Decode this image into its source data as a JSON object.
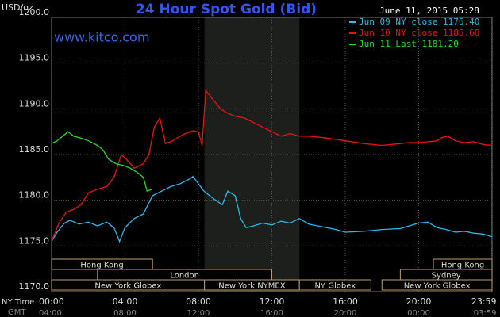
{
  "chart_data": {
    "type": "line",
    "title": "24 Hour Spot Gold (Bid)",
    "date": "June 11, 2015 05:28",
    "watermark": "www.kitco.com",
    "y_label": "USD/oz",
    "x_label": "NY Time",
    "x2_label": "GMT",
    "xlim": [
      0,
      24
    ],
    "ylim": [
      1170,
      1200
    ],
    "xticks": [
      {
        "value": 0,
        "label": "00:00"
      },
      {
        "value": 4,
        "label": "04:00"
      },
      {
        "value": 8,
        "label": "08:00"
      },
      {
        "value": 12,
        "label": "12:00"
      },
      {
        "value": 16,
        "label": "16:00"
      },
      {
        "value": 20,
        "label": "20:00"
      },
      {
        "value": 23.98,
        "label": "23:59"
      }
    ],
    "x2ticks": [
      {
        "value": 0,
        "label": "04:00"
      },
      {
        "value": 4,
        "label": "08:00"
      },
      {
        "value": 8,
        "label": "12:00"
      },
      {
        "value": 12,
        "label": "16:00"
      },
      {
        "value": 16,
        "label": "20:00"
      },
      {
        "value": 20,
        "label": "00:00"
      },
      {
        "value": 23.98,
        "label": "03:59"
      }
    ],
    "yticks": [
      {
        "value": 1170,
        "label": "1170.0"
      },
      {
        "value": 1175,
        "label": "1175.0"
      },
      {
        "value": 1180,
        "label": "1180.0"
      },
      {
        "value": 1185,
        "label": "1185.0"
      },
      {
        "value": 1190,
        "label": "1190.0"
      },
      {
        "value": 1195,
        "label": "1195.0"
      },
      {
        "value": 1200,
        "label": "1200.0"
      }
    ],
    "grid": true,
    "shaded": [
      8.33,
      13.5
    ],
    "session_rows": [
      [
        {
          "label": "Hong Kong",
          "start": 0,
          "end": 5.5
        },
        {
          "label": "Hong Kong",
          "start": 20.8,
          "end": 24
        }
      ],
      [
        {
          "label": "London",
          "start": 2.5,
          "end": 12
        },
        {
          "label": "Sydney",
          "start": 19,
          "end": 24
        }
      ],
      [
        {
          "label": "New York Globex",
          "start": 0,
          "end": 8.33
        },
        {
          "label": "New York NYMEX",
          "start": 8.33,
          "end": 13.5
        },
        {
          "label": "NY Globex",
          "start": 13.5,
          "end": 17.4
        },
        {
          "label": "New York Globex",
          "start": 18,
          "end": 24
        }
      ]
    ],
    "series": [
      {
        "name": "Jun 09 NY close 1176.40",
        "color": "#22bbee",
        "x": [
          0,
          0.3,
          0.7,
          1,
          1.5,
          2,
          2.5,
          3,
          3.4,
          3.7,
          4,
          4.5,
          5,
          5.5,
          6,
          6.5,
          7,
          7.5,
          7.7,
          8,
          8.3,
          8.8,
          9.3,
          9.6,
          10,
          10.3,
          10.6,
          11,
          11.5,
          12,
          12.5,
          13,
          13.5,
          14,
          14.5,
          15,
          15.5,
          16,
          17,
          18,
          19,
          20,
          20.5,
          21,
          21.5,
          22,
          22.5,
          23,
          23.5,
          24
        ],
        "values": [
          1175.5,
          1176.5,
          1177.5,
          1177.8,
          1177.4,
          1177.6,
          1177.2,
          1177.6,
          1177,
          1175.5,
          1177,
          1178,
          1178.5,
          1180.5,
          1181,
          1181.5,
          1181.8,
          1182.3,
          1182.6,
          1181.8,
          1181,
          1180.2,
          1179.5,
          1181,
          1180.5,
          1178,
          1177,
          1177.2,
          1177.5,
          1177.3,
          1177.7,
          1177.5,
          1178,
          1177.4,
          1177.2,
          1177,
          1176.8,
          1176.5,
          1176.6,
          1176.8,
          1176.9,
          1177.5,
          1177.6,
          1177,
          1176.8,
          1176.5,
          1176.6,
          1176.4,
          1176.3,
          1176
        ]
      },
      {
        "name": "Jun 10 NY close 1185.60",
        "color": "#ee1111",
        "x": [
          0,
          0.4,
          0.8,
          1.2,
          1.6,
          2,
          2.5,
          3,
          3.4,
          3.8,
          4.2,
          4.5,
          5,
          5.3,
          5.6,
          5.9,
          6.2,
          6.6,
          7,
          7.3,
          7.7,
          8,
          8.2,
          8.4,
          8.8,
          9.2,
          9.6,
          10,
          10.5,
          11,
          11.5,
          12,
          12.5,
          13,
          13.5,
          14,
          15,
          16,
          17,
          18,
          19,
          19.5,
          20,
          20.5,
          21,
          21.3,
          21.6,
          22,
          22.5,
          23,
          23.5,
          24
        ],
        "values": [
          1175.5,
          1177.5,
          1178.7,
          1179,
          1179.5,
          1180.8,
          1181.2,
          1181.5,
          1182.5,
          1185,
          1184.2,
          1183.5,
          1184,
          1185,
          1188,
          1189,
          1186.2,
          1186.5,
          1187,
          1187.3,
          1187.6,
          1187.5,
          1186,
          1192,
          1191,
          1190,
          1189.5,
          1189.2,
          1189,
          1188.5,
          1188,
          1187.5,
          1187,
          1187.3,
          1187,
          1187,
          1186.8,
          1186.5,
          1186.2,
          1186,
          1186.2,
          1186.3,
          1186.3,
          1186.4,
          1186.5,
          1186.9,
          1187,
          1186.5,
          1186.3,
          1186.4,
          1186.1,
          1186
        ]
      },
      {
        "name": "Jun 11 Last 1181.20",
        "color": "#22dd22",
        "x": [
          0,
          0.3,
          0.6,
          0.9,
          1.2,
          1.6,
          2,
          2.5,
          2.8,
          3.1,
          3.5,
          3.9,
          4.3,
          4.7,
          5,
          5.2,
          5.47
        ],
        "values": [
          1186.2,
          1186.5,
          1187,
          1187.5,
          1187,
          1186.8,
          1186.5,
          1186,
          1185.5,
          1184.5,
          1184,
          1183.8,
          1183.5,
          1183,
          1182.5,
          1181,
          1181.2
        ]
      }
    ]
  }
}
